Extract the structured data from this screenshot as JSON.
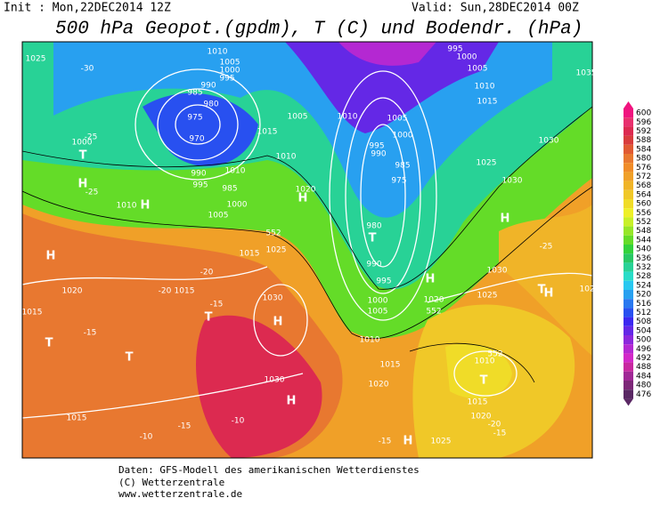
{
  "header": {
    "init": "Init : Mon,22DEC2014 12Z",
    "valid": "Valid: Sun,28DEC2014 00Z",
    "title": "500 hPa Geopot.(gpdm), T (C) und Bodendr. (hPa)"
  },
  "colorbar": {
    "ticks": [
      600,
      596,
      592,
      588,
      584,
      580,
      576,
      572,
      568,
      564,
      560,
      556,
      552,
      548,
      544,
      540,
      536,
      532,
      528,
      524,
      520,
      516,
      512,
      508,
      504,
      500,
      496,
      492,
      488,
      484,
      480,
      476
    ],
    "colors": [
      "#f0147f",
      "#e8306e",
      "#dc2a50",
      "#d83c3c",
      "#e05a32",
      "#e87830",
      "#f08c28",
      "#f0a028",
      "#f0b428",
      "#f0c828",
      "#f0dc28",
      "#eef028",
      "#c8f028",
      "#96e628",
      "#64dc28",
      "#32d23c",
      "#28c864",
      "#28d296",
      "#28dcc8",
      "#28c8f0",
      "#28a0f0",
      "#2878f0",
      "#2850f0",
      "#3c28f0",
      "#6428e6",
      "#8c28dc",
      "#b428d2",
      "#d228c8",
      "#c828a0",
      "#a02896",
      "#7d2878",
      "#5a2864"
    ]
  },
  "map_labels": [
    "1025",
    "-30",
    "1010",
    "1005",
    "1000",
    "995",
    "990",
    "985",
    "980",
    "975",
    "970",
    "1000",
    "-25",
    "T",
    "H",
    "1010",
    "H",
    "-25",
    "990",
    "995",
    "985",
    "1010",
    "1000",
    "1005",
    "1015",
    "1005",
    "1010",
    "1020",
    "H",
    "1010",
    "1005",
    "1000",
    "995",
    "990",
    "985",
    "975",
    "980",
    "T",
    "990",
    "995",
    "1000",
    "1005",
    "1010",
    "1015",
    "1020",
    "H",
    "1020",
    "1025",
    "1030",
    "1025",
    "1030",
    "1030",
    "H",
    "1035",
    "1005",
    "1000",
    "995",
    "1010",
    "1015",
    "-25",
    "T",
    "H",
    "1020",
    "1015",
    "1025",
    "552",
    "552",
    "552",
    "1030",
    "H",
    "1010",
    "T",
    "1030",
    "H",
    "1015",
    "1020",
    "-20",
    "-15",
    "T",
    "T",
    "T",
    "H",
    "1020",
    "-20",
    "1015",
    "1015",
    "-15",
    "-15",
    "-20",
    "1015",
    "-10",
    "-15",
    "-10",
    "-15",
    "H",
    "1025"
  ],
  "footer": {
    "source": "Daten: GFS-Modell des amerikanischen Wetterdienstes",
    "copyright": "(C) Wetterzentrale",
    "url": "www.wetterzentrale.de"
  }
}
